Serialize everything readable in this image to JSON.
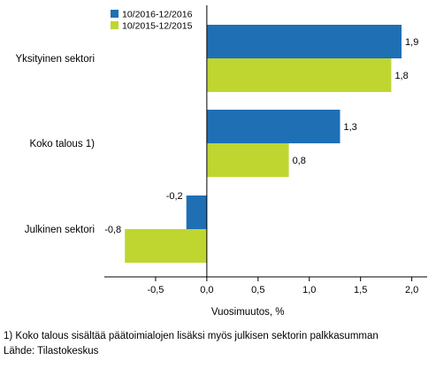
{
  "chart_data": {
    "type": "bar",
    "orientation": "horizontal",
    "categories": [
      "Yksityinen sektori",
      "Koko talous 1)",
      "Julkinen sektori"
    ],
    "series": [
      {
        "name": "10/2016-12/2016",
        "values": [
          1.9,
          1.3,
          -0.2
        ],
        "labels": [
          "1,9",
          "1,3",
          "-0,2"
        ],
        "color": "#1f6fb5"
      },
      {
        "name": "10/2015-12/2015",
        "values": [
          1.8,
          0.8,
          -0.8
        ],
        "labels": [
          "1,8",
          "0,8",
          "-0,8"
        ],
        "color": "#bfd630"
      }
    ],
    "xlim": [
      -1.0,
      2.15
    ],
    "xticks": [
      -0.5,
      0.0,
      0.5,
      1.0,
      1.5,
      2.0
    ],
    "xtick_labels": [
      "-0,5",
      "0,0",
      "0,5",
      "1,0",
      "1,5",
      "2,0"
    ],
    "xlabel": "Vuosimuutos, %",
    "legend_position": "top-left",
    "grid": false
  },
  "footnotes": {
    "note": "1) Koko talous sisältää päätoimialojen lisäksi myös julkisen sektorin palkkasumman",
    "source": "Lähde: Tilastokeskus"
  }
}
